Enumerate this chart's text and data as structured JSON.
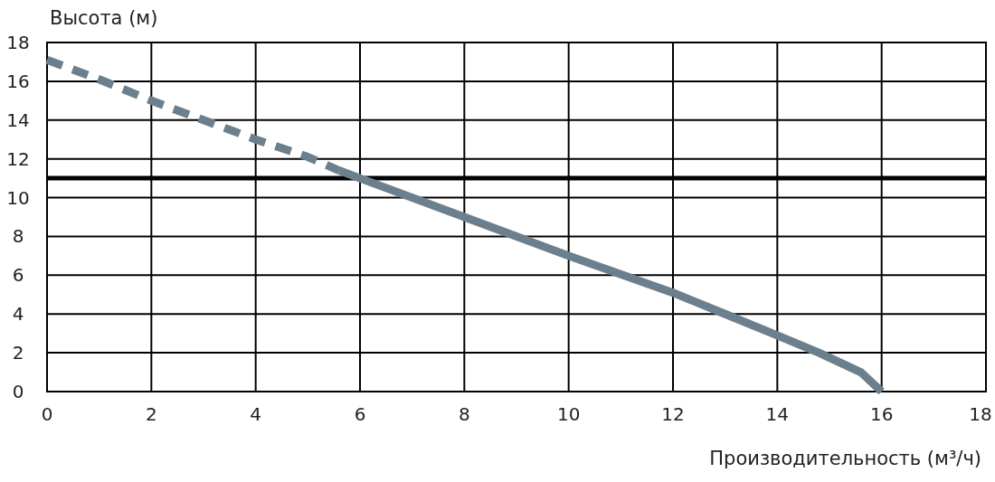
{
  "chart_data": {
    "type": "line",
    "ylabel": "Высота (м)",
    "xlabel": "Производительность (м³/ч)",
    "xlim": [
      0,
      18
    ],
    "ylim": [
      0,
      18
    ],
    "xticks": [
      0,
      2,
      4,
      6,
      8,
      10,
      12,
      14,
      16,
      18
    ],
    "yticks": [
      0,
      2,
      4,
      6,
      8,
      10,
      12,
      14,
      16,
      18
    ],
    "grid": true,
    "marker": "none",
    "series": [
      {
        "color": "#6b7f8c",
        "line_style": "dashed",
        "x": [
          0,
          1,
          2,
          3,
          4,
          5,
          5.6
        ],
        "values": [
          17.1,
          16.1,
          15,
          14,
          13,
          12.1,
          11.4
        ]
      },
      {
        "color": "#6b7f8c",
        "line_style": "solid",
        "x": [
          5.6,
          6,
          8,
          10,
          12,
          13,
          14,
          14.8,
          15.6,
          16
        ],
        "values": [
          11.4,
          11,
          9,
          7,
          5.1,
          4,
          2.9,
          2,
          1,
          0
        ]
      }
    ],
    "ref_lines": [
      {
        "axis": "y",
        "value": 11,
        "color": "#000000"
      }
    ]
  }
}
